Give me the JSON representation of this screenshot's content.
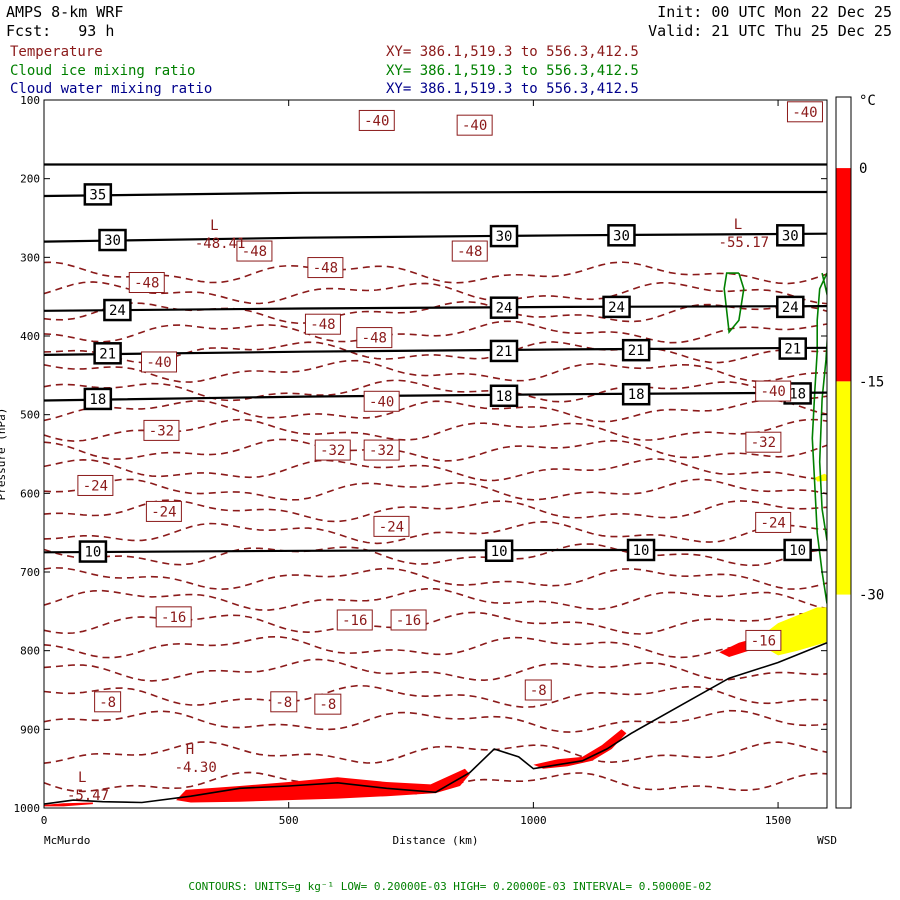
{
  "header": {
    "model": "AMPS 8-km WRF",
    "forecast": "Fcst:   93 h",
    "init": "Init: 00 UTC Mon 22 Dec 25",
    "valid": "Valid: 21 UTC Thu 25 Dec 25",
    "legend": [
      {
        "name": "Temperature",
        "color": "#8B1A1A",
        "xy": "XY= 386.1,519.3 to 556.3,412.5"
      },
      {
        "name": "Cloud ice mixing ratio",
        "color": "#008000",
        "xy": "XY= 386.1,519.3 to 556.3,412.5"
      },
      {
        "name": "Cloud water mixing ratio",
        "color": "#00008B",
        "xy": "XY= 386.1,519.3 to 556.3,412.5"
      }
    ]
  },
  "colorbar": {
    "unit": "°C",
    "ticks": [
      "0",
      "-15",
      "-30"
    ],
    "segments": [
      {
        "from": 5,
        "to": 0,
        "color": "#ffffff"
      },
      {
        "from": 0,
        "to": -15,
        "color": "#ff0000"
      },
      {
        "from": -15,
        "to": -30,
        "color": "#ffff00"
      },
      {
        "from": -30,
        "to": -45,
        "color": "#ffffff"
      }
    ]
  },
  "footer": {
    "contours": "CONTOURS:  UNITS=g kg⁻¹  LOW= 0.20000E-03  HIGH= 0.20000E-03  INTERVAL=  0.50000E-02"
  },
  "chart_data": {
    "type": "cross-section",
    "xlabel": "Distance (km)",
    "ylabel": "Pressure (hPa)",
    "xlim": [
      0,
      1600
    ],
    "ylim": [
      1000,
      100
    ],
    "x_ticks": [
      0,
      500,
      1000,
      1500
    ],
    "y_ticks": [
      100,
      200,
      300,
      400,
      500,
      600,
      700,
      800,
      900,
      1000
    ],
    "x_endpoints": {
      "left": "McMurdo",
      "right": "WSD"
    },
    "terrain": [
      [
        0,
        995
      ],
      [
        60,
        990
      ],
      [
        120,
        992
      ],
      [
        200,
        993
      ],
      [
        300,
        985
      ],
      [
        400,
        975
      ],
      [
        500,
        972
      ],
      [
        600,
        968
      ],
      [
        700,
        975
      ],
      [
        800,
        980
      ],
      [
        870,
        955
      ],
      [
        920,
        925
      ],
      [
        970,
        935
      ],
      [
        1000,
        950
      ],
      [
        1050,
        945
      ],
      [
        1100,
        940
      ],
      [
        1150,
        925
      ],
      [
        1200,
        905
      ],
      [
        1300,
        870
      ],
      [
        1400,
        835
      ],
      [
        1500,
        815
      ],
      [
        1600,
        790
      ]
    ],
    "solid_lines": [
      {
        "label": "",
        "p": [
          182,
          182,
          182,
          182
        ]
      },
      {
        "label": "35",
        "p": [
          222,
          218,
          217,
          217
        ]
      },
      {
        "label": "30",
        "p": [
          280,
          275,
          272,
          270
        ]
      },
      {
        "label": "24",
        "p": [
          368,
          365,
          363,
          362
        ]
      },
      {
        "label": "21",
        "p": [
          424,
          420,
          417,
          415
        ]
      },
      {
        "label": "18",
        "p": [
          482,
          477,
          474,
          472
        ]
      },
      {
        "label": "10",
        "p": [
          675,
          673,
          672,
          672
        ]
      }
    ],
    "solid_labels": [
      {
        "text": "35",
        "x": 110,
        "p": 220
      },
      {
        "text": "30",
        "x": 140,
        "p": 278
      },
      {
        "text": "30",
        "x": 940,
        "p": 273
      },
      {
        "text": "30",
        "x": 1180,
        "p": 272
      },
      {
        "text": "30",
        "x": 1525,
        "p": 272
      },
      {
        "text": "24",
        "x": 150,
        "p": 367
      },
      {
        "text": "24",
        "x": 940,
        "p": 364
      },
      {
        "text": "24",
        "x": 1170,
        "p": 363
      },
      {
        "text": "24",
        "x": 1525,
        "p": 363
      },
      {
        "text": "21",
        "x": 130,
        "p": 422
      },
      {
        "text": "21",
        "x": 940,
        "p": 419
      },
      {
        "text": "21",
        "x": 1210,
        "p": 418
      },
      {
        "text": "21",
        "x": 1530,
        "p": 416
      },
      {
        "text": "18",
        "x": 110,
        "p": 480
      },
      {
        "text": "18",
        "x": 940,
        "p": 476
      },
      {
        "text": "18",
        "x": 1210,
        "p": 474
      },
      {
        "text": "18",
        "x": 1540,
        "p": 473
      },
      {
        "text": "10",
        "x": 100,
        "p": 674
      },
      {
        "text": "10",
        "x": 930,
        "p": 673
      },
      {
        "text": "10",
        "x": 1220,
        "p": 672
      },
      {
        "text": "10",
        "x": 1540,
        "p": 672
      }
    ],
    "temperature_levels": [
      {
        "value": -4,
        "p": 968
      },
      {
        "value": -6,
        "p": 930
      },
      {
        "value": -8,
        "p": 890
      },
      {
        "value": -10,
        "p": 858
      },
      {
        "value": -12,
        "p": 825
      },
      {
        "value": -14,
        "p": 795
      },
      {
        "value": -16,
        "p": 765
      },
      {
        "value": -18,
        "p": 735
      },
      {
        "value": -20,
        "p": 708
      },
      {
        "value": -22,
        "p": 678
      },
      {
        "value": -24,
        "p": 650
      },
      {
        "value": -26,
        "p": 622
      },
      {
        "value": -28,
        "p": 596
      },
      {
        "value": -30,
        "p": 570
      },
      {
        "value": -32,
        "p": 545
      },
      {
        "value": -34,
        "p": 520
      },
      {
        "value": -36,
        "p": 495
      },
      {
        "value": -38,
        "p": 470
      },
      {
        "value": -40,
        "p": 445
      },
      {
        "value": -42,
        "p": 420
      },
      {
        "value": -44,
        "p": 395
      },
      {
        "value": -46,
        "p": 370
      },
      {
        "value": -48,
        "p": 345
      },
      {
        "value": -50,
        "p": 320
      }
    ],
    "temperature_labels": [
      {
        "text": "-40",
        "x": 680,
        "p": 126
      },
      {
        "text": "-40",
        "x": 880,
        "p": 132
      },
      {
        "text": "-40",
        "x": 1555,
        "p": 115
      },
      {
        "text": "-48",
        "x": 575,
        "p": 313
      },
      {
        "text": "-48",
        "x": 870,
        "p": 292
      },
      {
        "text": "-48",
        "x": 430,
        "p": 292
      },
      {
        "text": "-48",
        "x": 210,
        "p": 332
      },
      {
        "text": "-48",
        "x": 675,
        "p": 402
      },
      {
        "text": "-48",
        "x": 570,
        "p": 385
      },
      {
        "text": "-40",
        "x": 235,
        "p": 433
      },
      {
        "text": "-40",
        "x": 690,
        "p": 483
      },
      {
        "text": "-40",
        "x": 1490,
        "p": 470
      },
      {
        "text": "-32",
        "x": 240,
        "p": 520
      },
      {
        "text": "-32",
        "x": 590,
        "p": 545
      },
      {
        "text": "-32",
        "x": 690,
        "p": 545
      },
      {
        "text": "-32",
        "x": 1470,
        "p": 535
      },
      {
        "text": "-24",
        "x": 105,
        "p": 590
      },
      {
        "text": "-24",
        "x": 245,
        "p": 623
      },
      {
        "text": "-24",
        "x": 710,
        "p": 642
      },
      {
        "text": "-24",
        "x": 1490,
        "p": 637
      },
      {
        "text": "-16",
        "x": 265,
        "p": 757
      },
      {
        "text": "-16",
        "x": 635,
        "p": 761
      },
      {
        "text": "-16",
        "x": 745,
        "p": 761
      },
      {
        "text": "-16",
        "x": 1470,
        "p": 787
      },
      {
        "text": "-8",
        "x": 130,
        "p": 865
      },
      {
        "text": "-8",
        "x": 490,
        "p": 865
      },
      {
        "text": "-8",
        "x": 580,
        "p": 868
      },
      {
        "text": "-8",
        "x": 1010,
        "p": 850
      }
    ],
    "extrema": [
      {
        "symbol": "L",
        "value": "-48.41",
        "x": 360,
        "p": 283
      },
      {
        "symbol": "L",
        "value": "-55.17",
        "x": 1430,
        "p": 282
      },
      {
        "symbol": "H",
        "value": "-4.30",
        "x": 310,
        "p": 949
      },
      {
        "symbol": "L",
        "value": "-5.47",
        "x": 90,
        "p": 985
      }
    ],
    "shaded_regions": [
      {
        "range": "0 to -15 °C",
        "color": "#ff0000",
        "polygon": [
          [
            270,
            990
          ],
          [
            290,
            977
          ],
          [
            400,
            972
          ],
          [
            500,
            967
          ],
          [
            600,
            961
          ],
          [
            700,
            967
          ],
          [
            790,
            970
          ],
          [
            860,
            950
          ],
          [
            870,
            957
          ],
          [
            850,
            972
          ],
          [
            800,
            981
          ],
          [
            700,
            985
          ],
          [
            600,
            988
          ],
          [
            500,
            990
          ],
          [
            400,
            992
          ],
          [
            300,
            993
          ]
        ]
      },
      {
        "range": "0 to -15 °C",
        "color": "#ff0000",
        "polygon": [
          [
            1000,
            945
          ],
          [
            1050,
            938
          ],
          [
            1100,
            935
          ],
          [
            1140,
            920
          ],
          [
            1180,
            900
          ],
          [
            1190,
            905
          ],
          [
            1160,
            925
          ],
          [
            1120,
            940
          ],
          [
            1070,
            947
          ],
          [
            1020,
            950
          ]
        ]
      },
      {
        "range": "0 to -15 °C",
        "color": "#ff0000",
        "polygon": [
          [
            1380,
            802
          ],
          [
            1420,
            790
          ],
          [
            1460,
            783
          ],
          [
            1480,
            790
          ],
          [
            1440,
            800
          ],
          [
            1400,
            808
          ]
        ]
      },
      {
        "range": "0 to -15 °C",
        "color": "#ff0000",
        "polygon": [
          [
            0,
            996
          ],
          [
            40,
            994
          ],
          [
            100,
            993
          ],
          [
            100,
            995
          ],
          [
            40,
            998
          ],
          [
            0,
            998
          ]
        ]
      },
      {
        "range": "-15 to -30 °C",
        "color": "#ffff00",
        "polygon": [
          [
            1460,
            784
          ],
          [
            1500,
            765
          ],
          [
            1540,
            755
          ],
          [
            1580,
            745
          ],
          [
            1600,
            745
          ],
          [
            1600,
            789
          ],
          [
            1540,
            800
          ],
          [
            1500,
            806
          ],
          [
            1470,
            795
          ]
        ]
      },
      {
        "range": "-15 to -30 °C",
        "color": "#ffff00",
        "polygon": [
          [
            1575,
            580
          ],
          [
            1595,
            575
          ],
          [
            1600,
            577
          ],
          [
            1600,
            584
          ],
          [
            1580,
            585
          ]
        ]
      }
    ],
    "cloud_ice_contours": [
      [
        [
          1420,
          320
        ],
        [
          1430,
          340
        ],
        [
          1420,
          380
        ],
        [
          1400,
          395
        ],
        [
          1390,
          340
        ],
        [
          1395,
          320
        ],
        [
          1420,
          320
        ]
      ],
      [
        [
          1600,
          320
        ],
        [
          1585,
          340
        ],
        [
          1580,
          380
        ],
        [
          1580,
          420
        ],
        [
          1575,
          470
        ],
        [
          1570,
          530
        ],
        [
          1575,
          590
        ],
        [
          1580,
          650
        ],
        [
          1590,
          700
        ],
        [
          1600,
          740
        ]
      ],
      [
        [
          1590,
          320
        ],
        [
          1605,
          360
        ],
        [
          1598,
          430
        ],
        [
          1590,
          480
        ],
        [
          1585,
          560
        ],
        [
          1590,
          620
        ],
        [
          1600,
          660
        ]
      ]
    ]
  }
}
